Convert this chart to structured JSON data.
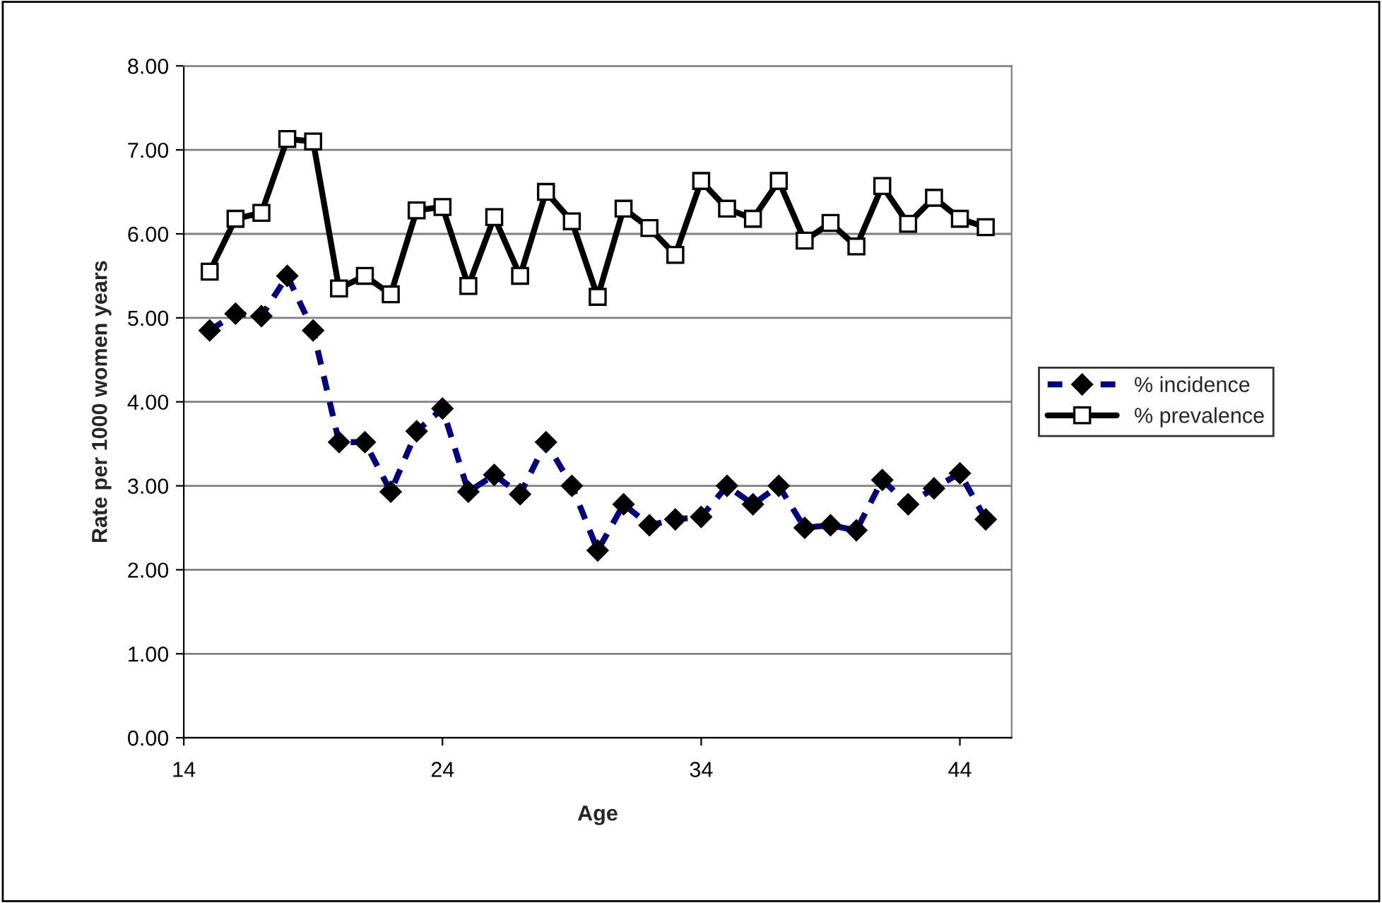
{
  "chart_data": {
    "type": "line",
    "xlabel": "Age",
    "ylabel": "Rate per 1000 women years",
    "x": [
      15,
      16,
      17,
      18,
      19,
      20,
      21,
      22,
      23,
      24,
      25,
      26,
      27,
      28,
      29,
      30,
      31,
      32,
      33,
      34,
      35,
      36,
      37,
      38,
      39,
      40,
      41,
      42,
      43,
      44,
      45
    ],
    "series": [
      {
        "name": "% incidence",
        "color": "#000080",
        "marker": "diamond",
        "line_style": "dashed",
        "values": [
          4.85,
          5.05,
          5.02,
          5.5,
          4.85,
          3.52,
          3.52,
          2.93,
          3.65,
          3.92,
          2.93,
          3.13,
          2.9,
          3.52,
          3.0,
          2.23,
          2.78,
          2.53,
          2.6,
          2.63,
          3.0,
          2.78,
          3.0,
          2.5,
          2.53,
          2.47,
          3.07,
          2.78,
          2.97,
          3.15,
          2.6
        ]
      },
      {
        "name": "% prevalence",
        "color": "#000000",
        "marker": "square",
        "line_style": "solid",
        "values": [
          5.55,
          6.18,
          6.25,
          7.13,
          7.1,
          5.35,
          5.5,
          5.28,
          6.28,
          6.32,
          5.38,
          6.2,
          5.5,
          6.5,
          6.15,
          5.25,
          6.3,
          6.07,
          5.75,
          6.63,
          6.3,
          6.18,
          6.63,
          5.92,
          6.13,
          5.85,
          6.57,
          6.12,
          6.43,
          6.18,
          6.08
        ]
      }
    ],
    "xlim": [
      14,
      46
    ],
    "xticks": [
      14,
      24,
      34,
      44
    ],
    "ylim": [
      0,
      8
    ],
    "yticks": [
      {
        "value": 0,
        "label": "0.00"
      },
      {
        "value": 1,
        "label": "1.00"
      },
      {
        "value": 2,
        "label": "2.00"
      },
      {
        "value": 3,
        "label": "3.00"
      },
      {
        "value": 4,
        "label": "4.00"
      },
      {
        "value": 5,
        "label": "5.00"
      },
      {
        "value": 6,
        "label": "6.00"
      },
      {
        "value": 7,
        "label": "7.00"
      },
      {
        "value": 8,
        "label": "8.00"
      }
    ],
    "grid": "y",
    "legend": "right"
  }
}
